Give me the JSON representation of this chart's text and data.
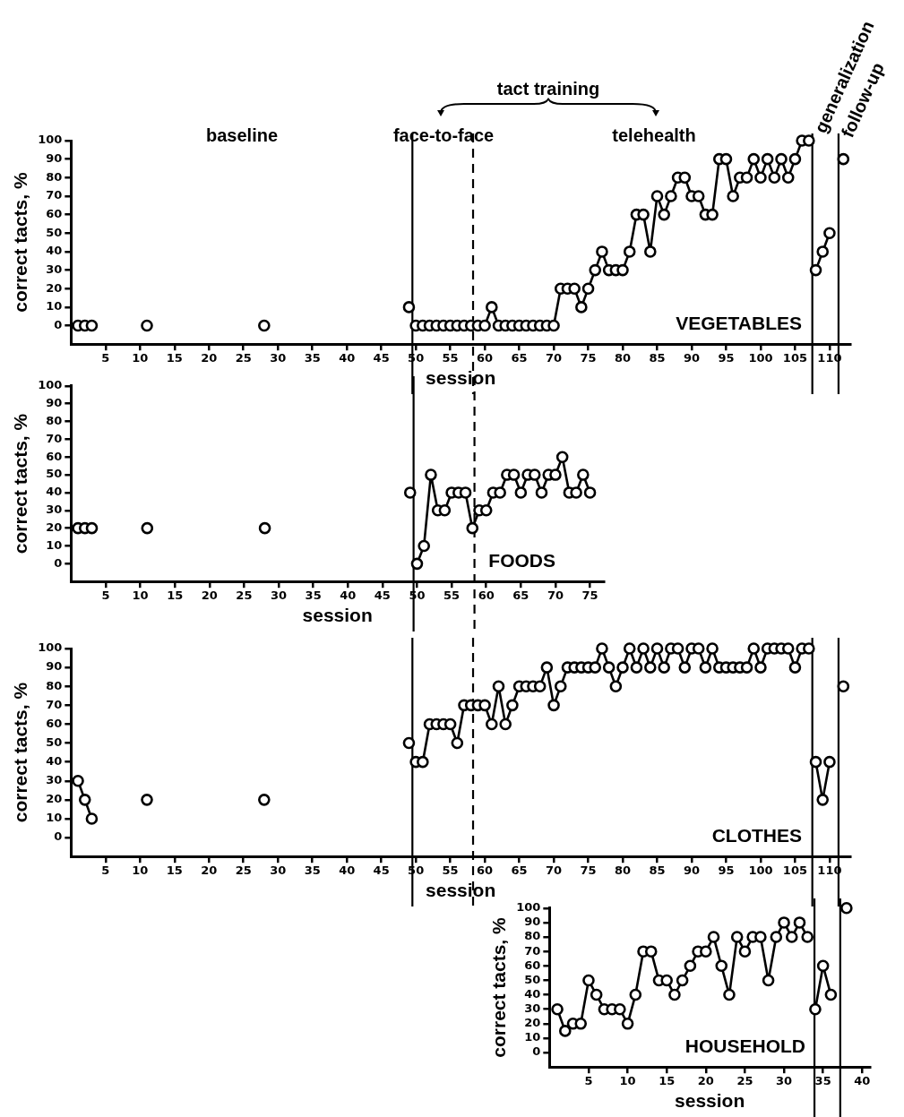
{
  "chart_data": [
    {
      "type": "line",
      "title": "VEGETABLES",
      "xlabel": "session",
      "ylabel": "correct tacts, %",
      "marker": "circle",
      "annotations": [
        "baseline",
        "face-to-face",
        "tact training",
        "telehealth",
        "generalization",
        "follow-up"
      ],
      "xlim": [
        0,
        113
      ],
      "xticks": [
        5,
        10,
        15,
        20,
        25,
        30,
        35,
        40,
        45,
        50,
        55,
        60,
        65,
        70,
        75,
        80,
        85,
        90,
        95,
        100,
        105,
        110
      ],
      "ylim": [
        -10,
        100
      ],
      "yticks": [
        0,
        10,
        20,
        30,
        40,
        50,
        60,
        70,
        80,
        90,
        100
      ],
      "ref_lines": [
        {
          "axis": "x",
          "value": 49.5
        },
        {
          "axis": "x",
          "value": 58.3,
          "line_style": "dashed"
        },
        {
          "axis": "x",
          "value": 107.5
        },
        {
          "axis": "x",
          "value": 111.3
        }
      ],
      "series": [
        {
          "type": "scatter",
          "color": "#000000",
          "x": [
            1,
            2,
            3
          ],
          "values": [
            0,
            0,
            0
          ]
        },
        {
          "color": "#000000",
          "x": [
            11,
            12,
            28,
            29,
            49,
            49.5,
            50,
            51,
            52,
            53,
            54,
            55,
            56,
            57,
            58,
            59,
            60,
            61,
            62,
            63,
            64,
            65,
            66,
            67,
            68,
            69,
            70,
            71,
            72,
            73,
            74,
            75,
            76,
            77,
            78,
            79,
            80,
            81,
            82,
            83,
            84,
            85,
            86,
            87,
            88,
            89,
            90,
            91,
            92,
            93,
            94,
            95,
            96,
            97,
            98,
            99,
            100,
            101,
            102,
            103,
            104,
            105,
            106,
            107,
            107.5,
            108,
            109,
            110,
            111,
            112
          ],
          "values": [
            0,
            null,
            0,
            null,
            10,
            null,
            0,
            0,
            0,
            0,
            0,
            0,
            0,
            0,
            0,
            0,
            0,
            10,
            0,
            0,
            0,
            0,
            0,
            0,
            0,
            0,
            0,
            20,
            20,
            20,
            10,
            20,
            30,
            40,
            30,
            30,
            30,
            40,
            60,
            60,
            40,
            70,
            60,
            70,
            80,
            80,
            70,
            70,
            60,
            60,
            90,
            90,
            70,
            80,
            80,
            90,
            80,
            90,
            80,
            90,
            80,
            90,
            100,
            100,
            null,
            30,
            40,
            50,
            null,
            90
          ]
        }
      ]
    },
    {
      "type": "line",
      "title": "FOODS",
      "xlabel": "session",
      "ylabel": "correct tacts, %",
      "marker": "circle",
      "xlim": [
        0,
        77
      ],
      "xticks": [
        5,
        10,
        15,
        20,
        25,
        30,
        35,
        40,
        45,
        50,
        55,
        60,
        65,
        70,
        75
      ],
      "ylim": [
        -10,
        100
      ],
      "yticks": [
        0,
        10,
        20,
        30,
        40,
        50,
        60,
        70,
        80,
        90,
        100
      ],
      "ref_lines": [
        {
          "axis": "x",
          "value": 49.5
        },
        {
          "axis": "x",
          "value": 58.3,
          "line_style": "dashed"
        }
      ],
      "series": [
        {
          "type": "scatter",
          "color": "#000000",
          "x": [
            1,
            2,
            3
          ],
          "values": [
            20,
            20,
            20
          ]
        },
        {
          "color": "#000000",
          "x": [
            11,
            12,
            28,
            29,
            49,
            49.5,
            50,
            51,
            52,
            53,
            54,
            55,
            56,
            57,
            58,
            59,
            60,
            61,
            62,
            63,
            64,
            65,
            66,
            67,
            68,
            69,
            70,
            71,
            72,
            73,
            74,
            75
          ],
          "values": [
            20,
            null,
            20,
            null,
            40,
            null,
            0,
            10,
            50,
            30,
            30,
            40,
            40,
            40,
            20,
            30,
            30,
            40,
            40,
            50,
            50,
            40,
            50,
            50,
            40,
            50,
            50,
            60,
            40,
            40,
            50,
            40
          ]
        }
      ]
    },
    {
      "type": "line",
      "title": "CLOTHES",
      "xlabel": "session",
      "ylabel": "correct tacts, %",
      "marker": "circle",
      "xlim": [
        0,
        113
      ],
      "xticks": [
        5,
        10,
        15,
        20,
        25,
        30,
        35,
        40,
        45,
        50,
        55,
        60,
        65,
        70,
        75,
        80,
        85,
        90,
        95,
        100,
        105,
        110
      ],
      "ylim": [
        -10,
        100
      ],
      "yticks": [
        0,
        10,
        20,
        30,
        40,
        50,
        60,
        70,
        80,
        90,
        100
      ],
      "ref_lines": [
        {
          "axis": "x",
          "value": 49.5
        },
        {
          "axis": "x",
          "value": 58.3,
          "line_style": "dashed"
        },
        {
          "axis": "x",
          "value": 107.5
        },
        {
          "axis": "x",
          "value": 111.3
        }
      ],
      "series": [
        {
          "color": "#000000",
          "x": [
            1,
            2,
            3,
            4,
            11,
            12,
            28,
            29,
            49,
            49.5,
            50,
            51,
            52,
            53,
            54,
            55,
            56,
            57,
            58,
            59,
            60,
            61,
            62,
            63,
            64,
            65,
            66,
            67,
            68,
            69,
            70,
            71,
            72,
            73,
            74,
            75,
            76,
            77,
            78,
            79,
            80,
            81,
            82,
            83,
            84,
            85,
            86,
            87,
            88,
            89,
            90,
            91,
            92,
            93,
            94,
            95,
            96,
            97,
            98,
            99,
            100,
            101,
            102,
            103,
            104,
            105,
            106,
            107,
            107.5,
            108,
            109,
            110,
            111,
            112
          ],
          "values": [
            30,
            20,
            10,
            null,
            20,
            null,
            20,
            null,
            50,
            null,
            40,
            40,
            60,
            60,
            60,
            60,
            50,
            70,
            70,
            70,
            70,
            60,
            80,
            60,
            70,
            80,
            80,
            80,
            80,
            90,
            70,
            80,
            90,
            90,
            90,
            90,
            90,
            100,
            90,
            80,
            90,
            100,
            90,
            100,
            90,
            100,
            90,
            100,
            100,
            90,
            100,
            100,
            90,
            100,
            90,
            90,
            90,
            90,
            90,
            100,
            90,
            100,
            100,
            100,
            100,
            90,
            100,
            100,
            null,
            40,
            20,
            40,
            null,
            80
          ]
        }
      ]
    },
    {
      "type": "line",
      "title": "HOUSEHOLD",
      "xlabel": "session",
      "ylabel": "correct tacts, %",
      "marker": "circle",
      "xlim": [
        0,
        41
      ],
      "xticks": [
        5,
        10,
        15,
        20,
        25,
        30,
        35,
        40
      ],
      "ylim": [
        -10,
        100
      ],
      "yticks": [
        0,
        10,
        20,
        30,
        40,
        50,
        60,
        70,
        80,
        90,
        100
      ],
      "ref_lines": [
        {
          "axis": "x",
          "value": 33.9
        },
        {
          "axis": "x",
          "value": 37.2
        }
      ],
      "series": [
        {
          "color": "#000000",
          "x": [
            1,
            2,
            3,
            4,
            5,
            6,
            7,
            8,
            9,
            10,
            11,
            12,
            13,
            14,
            15,
            16,
            17,
            18,
            19,
            20,
            21,
            22,
            23,
            24,
            25,
            26,
            27,
            28,
            29,
            30,
            31,
            32,
            33,
            33.5,
            34,
            35,
            36,
            37,
            38
          ],
          "values": [
            30,
            15,
            20,
            20,
            50,
            40,
            30,
            30,
            30,
            20,
            40,
            70,
            70,
            50,
            50,
            40,
            50,
            60,
            70,
            70,
            80,
            60,
            40,
            80,
            70,
            80,
            80,
            50,
            80,
            90,
            80,
            90,
            80,
            null,
            30,
            60,
            40,
            null,
            100
          ]
        }
      ]
    }
  ]
}
